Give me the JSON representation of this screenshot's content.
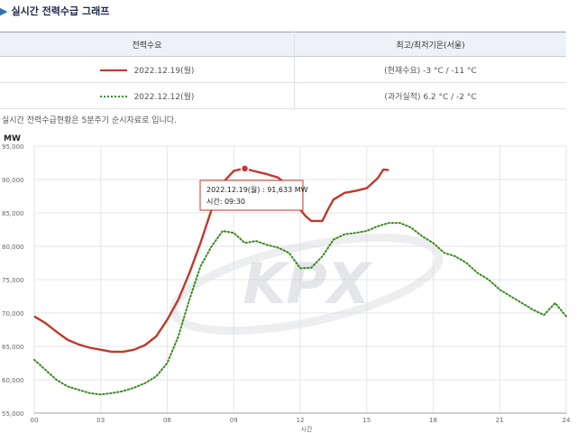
{
  "page": {
    "title": "실시간 전력수급 그래프",
    "note": "실시간 전력수급현황은 5분주기 순시자료로 입니다."
  },
  "legend": {
    "header_series": "전력수요",
    "header_temp": "최고/최저기온(서울)",
    "rows": [
      {
        "label": "2022.12.19(월)",
        "temp": "(현재수요) -3 °C / -11 °C",
        "style": "solid"
      },
      {
        "label": "2022.12.12(월)",
        "temp": "(과거실적) 6.2 °C / -2 °C",
        "style": "dotted"
      }
    ]
  },
  "tooltip": {
    "line1": "2022.12.19(월) : 91,633 MW",
    "line2": "시간: 09:30"
  },
  "colors": {
    "current": "#c0392b",
    "past": "#3a8a1e",
    "grid": "#e3e6ea"
  },
  "watermark": "KPX",
  "chart_data": {
    "type": "line",
    "ylabel": "MW",
    "xlabel": "시간",
    "ylim": [
      55000,
      95000
    ],
    "xlim": [
      0,
      24
    ],
    "y_ticks": [
      "55,000",
      "60,000",
      "65,000",
      "70,000",
      "75,000",
      "80,000",
      "85,000",
      "90,000",
      "95,000"
    ],
    "x_ticks": [
      "00",
      "03",
      "06",
      "09",
      "12",
      "15",
      "18",
      "21",
      "24"
    ],
    "series": [
      {
        "name": "2022.12.19(월)",
        "style": "solid",
        "x": [
          0,
          0.5,
          1,
          1.5,
          2,
          2.5,
          3,
          3.5,
          4,
          4.5,
          5,
          5.5,
          6,
          6.5,
          7,
          7.5,
          8,
          8.5,
          9,
          9.25,
          9.5,
          10,
          10.5,
          11,
          11.5,
          12,
          12.25,
          12.5,
          13,
          13.25,
          13.5,
          14,
          14.5,
          15,
          15.5,
          15.75,
          16
        ],
        "y": [
          69500,
          68500,
          67200,
          66000,
          65300,
          64800,
          64500,
          64200,
          64200,
          64500,
          65200,
          66500,
          69000,
          72000,
          76000,
          80500,
          85500,
          89500,
          91300,
          91500,
          91633,
          91200,
          90800,
          90300,
          89000,
          85500,
          84500,
          83800,
          83800,
          85500,
          87000,
          88000,
          88300,
          88700,
          90200,
          91500,
          91400
        ]
      },
      {
        "name": "2022.12.12(월)",
        "style": "dotted",
        "x": [
          0,
          0.5,
          1,
          1.5,
          2,
          2.5,
          3,
          3.5,
          4,
          4.5,
          5,
          5.5,
          6,
          6.5,
          7,
          7.5,
          8,
          8.5,
          9,
          9.5,
          10,
          10.5,
          11,
          11.5,
          12,
          12.5,
          13,
          13.5,
          14,
          14.5,
          15,
          15.5,
          16,
          16.5,
          17,
          17.5,
          18,
          18.5,
          19,
          19.5,
          20,
          20.5,
          21,
          21.5,
          22,
          22.5,
          23,
          23.5,
          24
        ],
        "y": [
          63000,
          61500,
          60000,
          59000,
          58500,
          58000,
          57800,
          58000,
          58300,
          58800,
          59500,
          60500,
          62500,
          66500,
          72000,
          77000,
          80000,
          82300,
          82000,
          80500,
          80800,
          80200,
          79800,
          79000,
          76700,
          76800,
          78500,
          81000,
          81800,
          82000,
          82300,
          83000,
          83500,
          83500,
          82800,
          81500,
          80500,
          79000,
          78500,
          77500,
          76000,
          75000,
          73500,
          72500,
          71500,
          70500,
          69700,
          71500,
          69500
        ]
      }
    ]
  }
}
